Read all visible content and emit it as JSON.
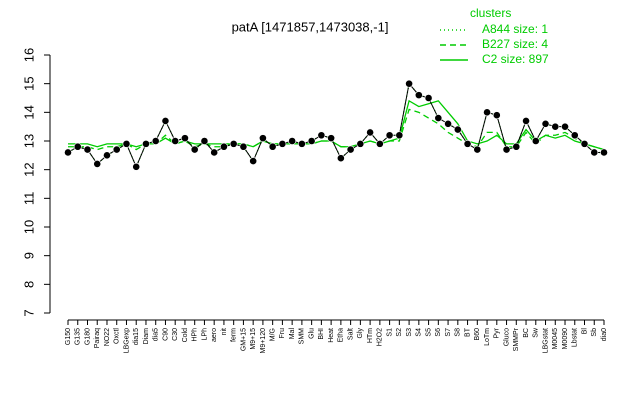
{
  "chart_data": {
    "type": "line",
    "title": "patA [1471857,1473038,-1]",
    "legend_title": "clusters",
    "categories": [
      "G150",
      "G135",
      "G180",
      "Pairaq",
      "NO22",
      "Oxctl",
      "LBGexp",
      "dia15",
      "Diam",
      "dia5",
      "C90",
      "C30",
      "Cold",
      "HPh",
      "LPh",
      "aero",
      "nit",
      "ferm",
      "GM+15",
      "M9+15",
      "M9+120",
      "M/G",
      "Fru",
      "Mal",
      "SMM",
      "Glu",
      "BHI",
      "Heat",
      "Etha",
      "Salt",
      "Gly",
      "HTm",
      "H2O2",
      "S1",
      "S2",
      "S3",
      "S4",
      "S5",
      "S6",
      "S7",
      "S8",
      "BT",
      "B60",
      "LoTm",
      "Pyr",
      "Gluco",
      "SMMPr",
      "BC",
      "Sw",
      "LBGstat",
      "M0045",
      "M0090",
      "Lbstat",
      "Bl",
      "Sb",
      "dia0"
    ],
    "values": [
      12.6,
      12.8,
      12.7,
      12.2,
      12.5,
      12.7,
      12.9,
      12.1,
      12.9,
      13.0,
      13.7,
      13.0,
      13.1,
      12.7,
      13.0,
      12.6,
      12.8,
      12.9,
      12.8,
      12.3,
      13.1,
      12.8,
      12.9,
      13.0,
      12.9,
      13.0,
      13.2,
      13.1,
      12.4,
      12.7,
      12.9,
      13.3,
      12.9,
      13.2,
      13.2,
      15.0,
      14.6,
      14.5,
      13.8,
      13.6,
      13.4,
      12.9,
      12.7,
      14.0,
      13.9,
      12.7,
      12.8,
      13.7,
      13.0,
      13.6,
      13.5,
      13.5,
      13.2,
      12.9,
      12.6,
      12.6
    ],
    "point_color": "#000000",
    "series": [
      {
        "name": "A844 size: 1",
        "color": "#00cc00",
        "dash": "1,3",
        "values": [
          12.6,
          12.8,
          12.7,
          12.2,
          12.5,
          12.7,
          12.9,
          12.1,
          12.9,
          13.0,
          13.7,
          13.0,
          13.1,
          12.7,
          13.0,
          12.6,
          12.8,
          12.9,
          12.8,
          12.3,
          13.1,
          12.8,
          12.9,
          13.0,
          12.9,
          13.0,
          13.2,
          13.1,
          12.4,
          12.7,
          12.9,
          13.3,
          12.9,
          13.2,
          13.2,
          15.0,
          14.6,
          14.5,
          13.8,
          13.6,
          13.4,
          12.9,
          12.7,
          14.0,
          13.9,
          12.7,
          12.8,
          13.7,
          13.0,
          13.6,
          13.5,
          13.5,
          13.2,
          12.9,
          12.6,
          12.6
        ]
      },
      {
        "name": "B227 size: 4",
        "color": "#00cc00",
        "dash": "6,4",
        "values": [
          12.8,
          12.8,
          12.8,
          12.7,
          12.8,
          12.8,
          12.9,
          12.7,
          12.9,
          12.9,
          13.2,
          12.9,
          13.0,
          12.8,
          12.9,
          12.8,
          12.8,
          12.9,
          12.9,
          12.8,
          13.0,
          12.9,
          12.9,
          12.9,
          12.9,
          12.9,
          13.0,
          13.0,
          12.8,
          12.8,
          12.9,
          13.0,
          12.9,
          13.0,
          13.0,
          14.1,
          14.0,
          13.8,
          13.6,
          13.3,
          13.1,
          12.9,
          12.8,
          13.3,
          13.3,
          12.8,
          12.8,
          13.3,
          12.9,
          13.2,
          13.2,
          13.3,
          13.1,
          12.9,
          12.8,
          12.7
        ]
      },
      {
        "name": "C2 size: 897",
        "color": "#00cc00",
        "dash": "",
        "values": [
          12.9,
          12.9,
          12.9,
          12.8,
          12.9,
          12.9,
          12.9,
          12.8,
          12.9,
          12.9,
          13.1,
          12.9,
          13.0,
          12.9,
          12.9,
          12.9,
          12.9,
          12.9,
          12.9,
          12.8,
          13.0,
          12.9,
          12.9,
          12.9,
          12.9,
          12.9,
          13.0,
          13.0,
          12.8,
          12.8,
          12.9,
          13.0,
          12.9,
          13.0,
          13.1,
          14.4,
          14.2,
          14.3,
          14.4,
          14.0,
          13.6,
          13.0,
          12.9,
          13.0,
          13.2,
          12.9,
          12.9,
          13.4,
          13.0,
          13.2,
          13.1,
          13.2,
          13.0,
          12.9,
          12.8,
          12.7
        ]
      }
    ],
    "ylim": [
      7,
      16
    ],
    "yticks": [
      7,
      8,
      9,
      10,
      11,
      12,
      13,
      14,
      15,
      16
    ]
  }
}
